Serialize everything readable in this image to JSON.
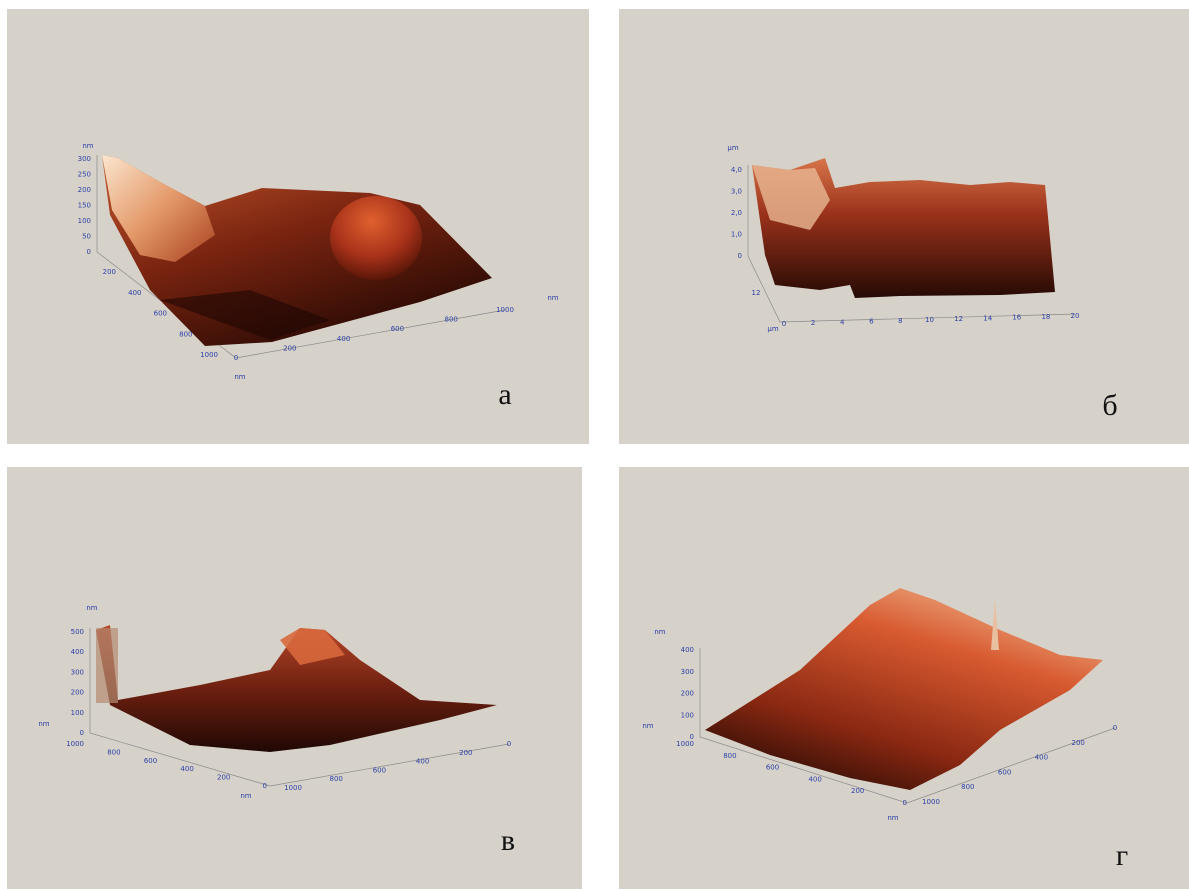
{
  "panels": [
    {
      "label": "а",
      "axes": [
        [
          "300",
          "250",
          "200",
          "150",
          "100",
          "50",
          "0"
        ],
        [
          "200",
          "400",
          "600",
          "800",
          "1000"
        ],
        [
          "0",
          "200",
          "400",
          "600",
          "800",
          "1000"
        ]
      ],
      "units": [
        "nm",
        "nm",
        "nm"
      ]
    },
    {
      "label": "б",
      "axes": [
        [
          "4,0",
          "3,0",
          "2,0",
          "1,0",
          "0"
        ],
        [
          "12"
        ],
        [
          "0",
          "2",
          "4",
          "6",
          "8",
          "10",
          "12",
          "14",
          "16",
          "18",
          "20"
        ]
      ],
      "units": [
        "µm",
        "µm"
      ]
    },
    {
      "label": "в",
      "axes": [
        [
          "500",
          "400",
          "300",
          "200",
          "100",
          "0"
        ],
        [
          "1000",
          "800",
          "600",
          "400",
          "200",
          "0"
        ],
        [
          "1000",
          "800",
          "600",
          "400",
          "200",
          "0"
        ]
      ],
      "units": [
        "nm",
        "nm",
        "nm"
      ]
    },
    {
      "label": "г",
      "axes": [
        [
          "400",
          "300",
          "200",
          "100",
          "0"
        ],
        [
          "1000",
          "800",
          "600",
          "400",
          "200",
          "0"
        ],
        [
          "1000",
          "800",
          "600",
          "400",
          "200",
          "0"
        ]
      ],
      "units": [
        "nm",
        "nm",
        "nm"
      ]
    }
  ]
}
